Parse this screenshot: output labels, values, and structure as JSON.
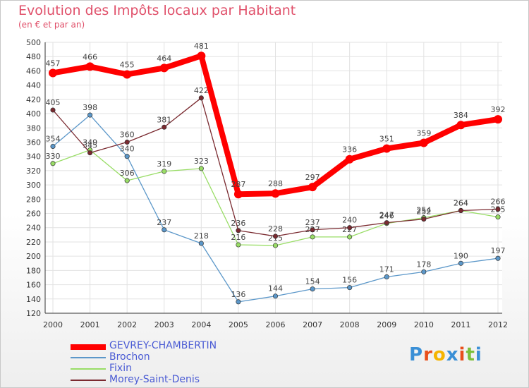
{
  "chart_data": {
    "type": "line",
    "title": "Evolution des Impôts locaux par Habitant",
    "subtitle": "(en € et par an)",
    "xlabel": "",
    "ylabel": "",
    "ylim": [
      120,
      500
    ],
    "ytick_step": 20,
    "categories": [
      "2000",
      "2001",
      "2002",
      "2003",
      "2004",
      "2005",
      "2006",
      "2007",
      "2008",
      "2009",
      "2010",
      "2011",
      "2012"
    ],
    "series": [
      {
        "name": "Brochon",
        "color": "#5b97c9",
        "values": [
          354,
          398,
          340,
          237,
          218,
          136,
          144,
          154,
          156,
          171,
          178,
          190,
          197
        ]
      },
      {
        "name": "Fixin",
        "color": "#99dd66",
        "values": [
          330,
          349,
          306,
          319,
          323,
          216,
          215,
          227,
          227,
          246,
          254,
          264,
          255
        ]
      },
      {
        "name": "Morey-Saint-Denis",
        "color": "#7a2a30",
        "values": [
          405,
          345,
          360,
          381,
          422,
          236,
          228,
          237,
          240,
          247,
          252,
          264,
          266
        ]
      },
      {
        "name": "GEVREY-CHAMBERTIN",
        "color": "#ff0000",
        "values": [
          457,
          466,
          455,
          464,
          481,
          287,
          288,
          297,
          336,
          351,
          359,
          384,
          392
        ]
      }
    ],
    "legend_order": [
      "GEVREY-CHAMBERTIN",
      "Brochon",
      "Fixin",
      "Morey-Saint-Denis"
    ]
  },
  "logo": {
    "text": "Proxiti"
  }
}
